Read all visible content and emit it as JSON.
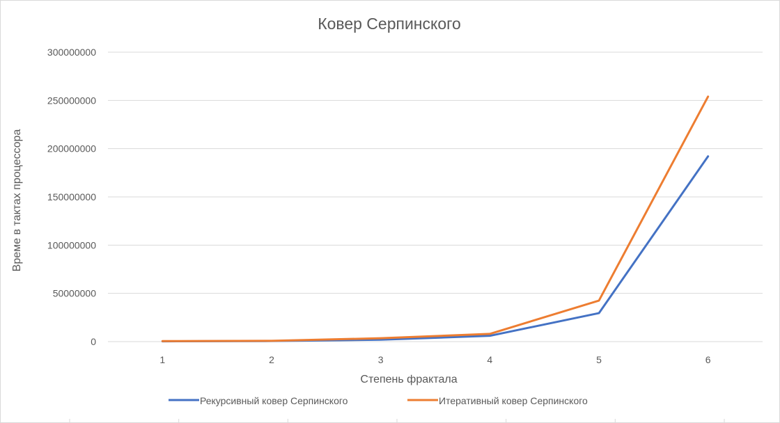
{
  "chart_data": {
    "type": "line",
    "title": "Ковер Серпинского",
    "xlabel": "Степень фрактала",
    "ylabel": "Време в тактах процессора",
    "categories": [
      "1",
      "2",
      "3",
      "4",
      "5",
      "6"
    ],
    "ylim": [
      0,
      300000000
    ],
    "yticks": [
      0,
      50000000,
      100000000,
      150000000,
      200000000,
      250000000,
      300000000
    ],
    "ytick_labels": [
      "0",
      "50000000",
      "100000000",
      "150000000",
      "200000000",
      "250000000",
      "300000000"
    ],
    "grid": true,
    "legend_position": "bottom",
    "series": [
      {
        "name": "Рекурсивный ковер Серпинского",
        "color": "#4472C4",
        "values": [
          300000,
          600000,
          2000000,
          6000000,
          29500000,
          192000000
        ]
      },
      {
        "name": "Итеративный ковер Серпинского",
        "color": "#ED7D31",
        "values": [
          500000,
          800000,
          3500000,
          8000000,
          42500000,
          254000000
        ]
      }
    ]
  }
}
